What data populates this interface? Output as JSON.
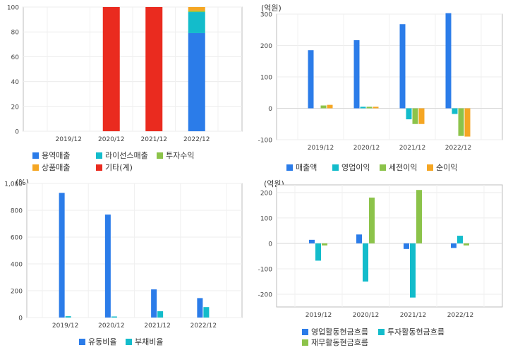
{
  "chart_data": [
    {
      "id": "sales-mix",
      "type": "bar",
      "stacked": true,
      "unit": "",
      "categories": [
        "2019/12",
        "2020/12",
        "2021/12",
        "2022/12"
      ],
      "ylim": [
        0,
        100
      ],
      "yticks": [
        0,
        20,
        40,
        60,
        80,
        100
      ],
      "series": [
        {
          "name": "용역매출",
          "color": "#2b7ce9",
          "values": [
            0,
            0,
            0,
            79
          ]
        },
        {
          "name": "라이선스매출",
          "color": "#13bccb",
          "values": [
            0,
            0,
            0,
            17
          ]
        },
        {
          "name": "투자수익",
          "color": "#8cc34a",
          "values": [
            0,
            0,
            0,
            1
          ]
        },
        {
          "name": "상품매출",
          "color": "#f5a623",
          "values": [
            0,
            0,
            0,
            3
          ]
        },
        {
          "name": "기타(계)",
          "color": "#ea2b1f",
          "values": [
            0,
            100,
            100,
            0
          ]
        }
      ],
      "grid": true,
      "legend": "bottom"
    },
    {
      "id": "income",
      "type": "bar",
      "unit": "(억원)",
      "categories": [
        "2019/12",
        "2020/12",
        "2021/12",
        "2022/12"
      ],
      "ylim": [
        -100,
        300
      ],
      "yticks": [
        -100,
        0,
        100,
        200,
        300
      ],
      "series": [
        {
          "name": "매출액",
          "color": "#2b7ce9",
          "values": [
            185,
            217,
            268,
            303
          ]
        },
        {
          "name": "영업이익",
          "color": "#13bccb",
          "values": [
            0,
            5,
            -35,
            -18
          ]
        },
        {
          "name": "세전이익",
          "color": "#8cc34a",
          "values": [
            9,
            5,
            -50,
            -88
          ]
        },
        {
          "name": "순이익",
          "color": "#f5a623",
          "values": [
            11,
            5,
            -50,
            -90
          ]
        }
      ],
      "grid": true,
      "legend": "bottom"
    },
    {
      "id": "ratios",
      "type": "bar",
      "unit": "(%)",
      "categories": [
        "2019/12",
        "2020/12",
        "2021/12",
        "2022/12"
      ],
      "ylim": [
        0,
        1000
      ],
      "yticks": [
        0,
        200,
        400,
        600,
        800,
        1000
      ],
      "ytick_labels": [
        "0",
        "200",
        "400",
        "600",
        "800",
        "1,000"
      ],
      "series": [
        {
          "name": "유동비율",
          "color": "#2b7ce9",
          "values": [
            930,
            768,
            210,
            145
          ]
        },
        {
          "name": "부채비율",
          "color": "#13bccb",
          "values": [
            10,
            8,
            47,
            78
          ]
        }
      ],
      "grid": true,
      "legend": "bottom"
    },
    {
      "id": "cashflow",
      "type": "bar",
      "unit": "(억원)",
      "categories": [
        "2019/12",
        "2020/12",
        "2021/12",
        "2022/12"
      ],
      "ylim": [
        -250,
        230
      ],
      "yticks": [
        -200,
        -100,
        0,
        100,
        200
      ],
      "series": [
        {
          "name": "영업활동현금흐름",
          "color": "#2b7ce9",
          "values": [
            14,
            35,
            -22,
            -18
          ]
        },
        {
          "name": "투자활동현금흐름",
          "color": "#13bccb",
          "values": [
            -68,
            -150,
            -213,
            30
          ]
        },
        {
          "name": "재무활동현금흐름",
          "color": "#8cc34a",
          "values": [
            -8,
            180,
            210,
            -8
          ]
        }
      ],
      "grid": true,
      "legend": "bottom"
    }
  ]
}
